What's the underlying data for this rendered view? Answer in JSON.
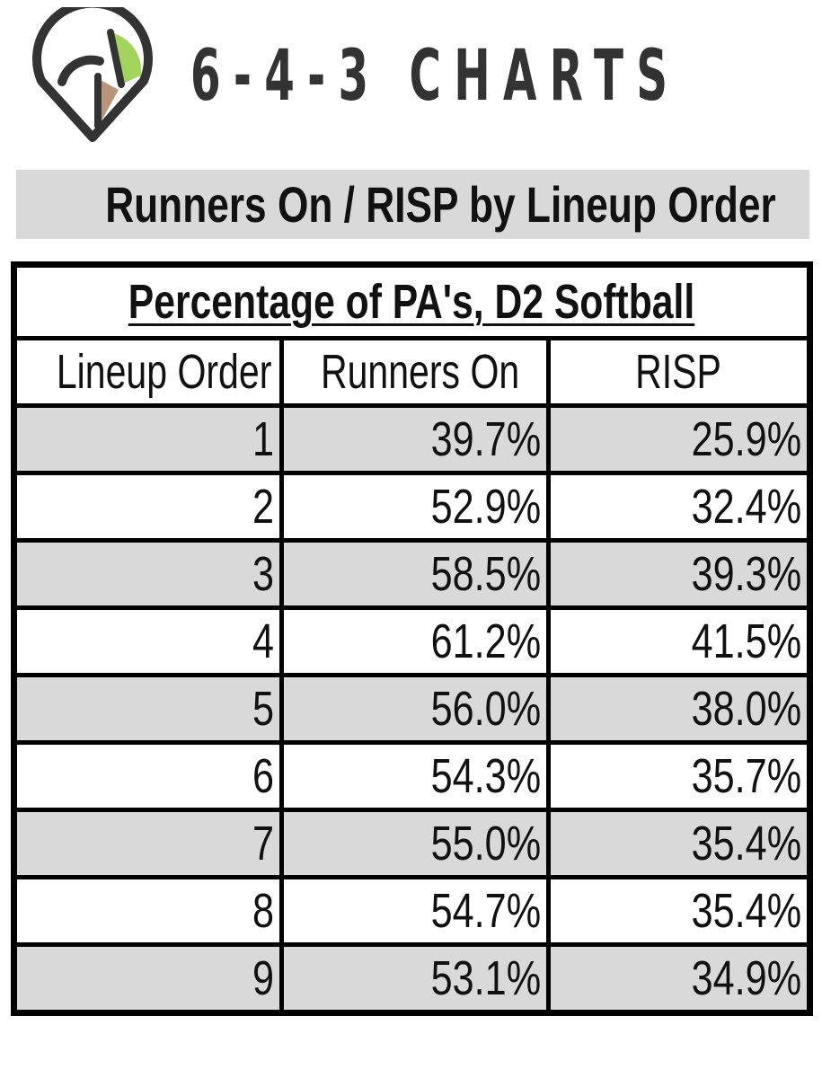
{
  "brand": {
    "name": "6-4-3 CHARTS",
    "logo_icon": "baseball-diamond-icon",
    "colors": {
      "outline": "#333333",
      "outfield": "#a3d45b",
      "infield": "#b8947a"
    }
  },
  "banner": {
    "title": "Runners On / RISP by Lineup Order",
    "background": "#d9d9d9"
  },
  "chart_data": {
    "type": "table",
    "title": "Percentage of PA's, D2 Softball",
    "columns": [
      "Lineup Order",
      "Runners On",
      "RISP"
    ],
    "rows": [
      [
        "1",
        "39.7%",
        "25.9%"
      ],
      [
        "2",
        "52.9%",
        "32.4%"
      ],
      [
        "3",
        "58.5%",
        "39.3%"
      ],
      [
        "4",
        "61.2%",
        "41.5%"
      ],
      [
        "5",
        "56.0%",
        "38.0%"
      ],
      [
        "6",
        "54.3%",
        "35.7%"
      ],
      [
        "7",
        "55.0%",
        "35.4%"
      ],
      [
        "8",
        "54.7%",
        "35.4%"
      ],
      [
        "9",
        "53.1%",
        "34.9%"
      ]
    ],
    "row_colors": [
      "#d9d9d9",
      "#ffffff"
    ]
  }
}
